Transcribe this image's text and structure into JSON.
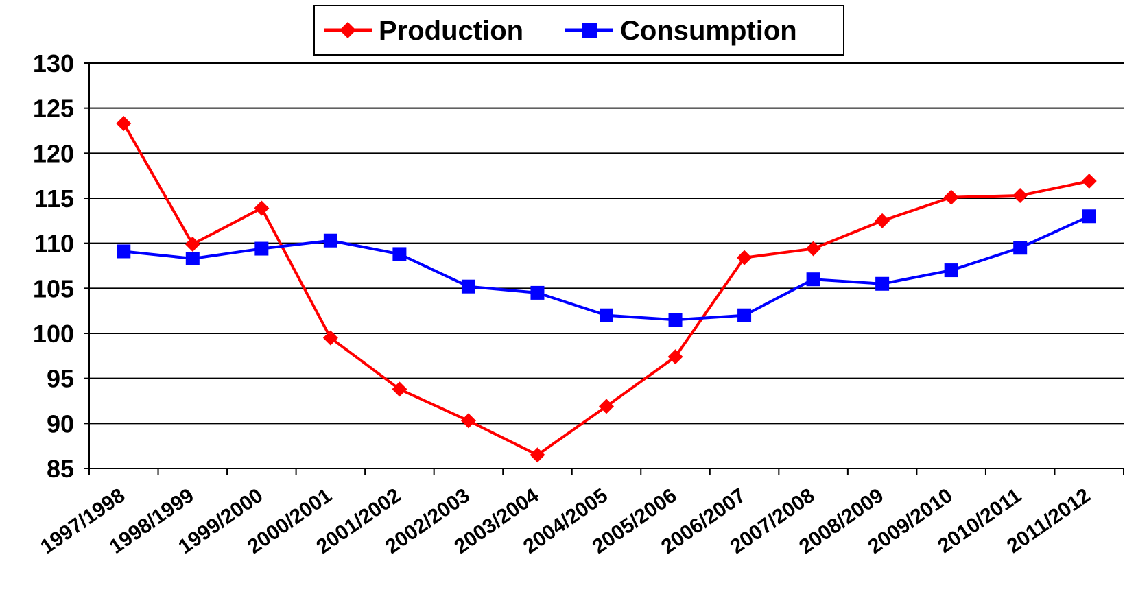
{
  "chart_data": {
    "type": "line",
    "title": "",
    "xlabel": "",
    "ylabel": "",
    "ylim": [
      85,
      130
    ],
    "yticks": [
      85,
      90,
      95,
      100,
      105,
      110,
      115,
      120,
      125,
      130
    ],
    "grid": true,
    "legend_position": "top-center",
    "categories": [
      "1997/1998",
      "1998/1999",
      "1999/2000",
      "2000/2001",
      "2001/2002",
      "2002/2003",
      "2003/2004",
      "2004/2005",
      "2005/2006",
      "2006/2007",
      "2007/2008",
      "2008/2009",
      "2009/2010",
      "2010/2011",
      "2011/2012"
    ],
    "series": [
      {
        "name": "Production",
        "color": "#ff0000",
        "marker": "diamond",
        "values": [
          123.3,
          109.9,
          113.9,
          99.5,
          93.8,
          90.3,
          86.5,
          91.9,
          97.4,
          108.4,
          109.4,
          112.5,
          115.1,
          115.3,
          116.9
        ]
      },
      {
        "name": "Consumption",
        "color": "#0000ff",
        "marker": "square",
        "values": [
          109.1,
          108.3,
          109.4,
          110.3,
          108.8,
          105.2,
          104.5,
          102.0,
          101.5,
          102.0,
          106.0,
          105.5,
          107.0,
          109.5,
          113.0
        ]
      }
    ]
  }
}
